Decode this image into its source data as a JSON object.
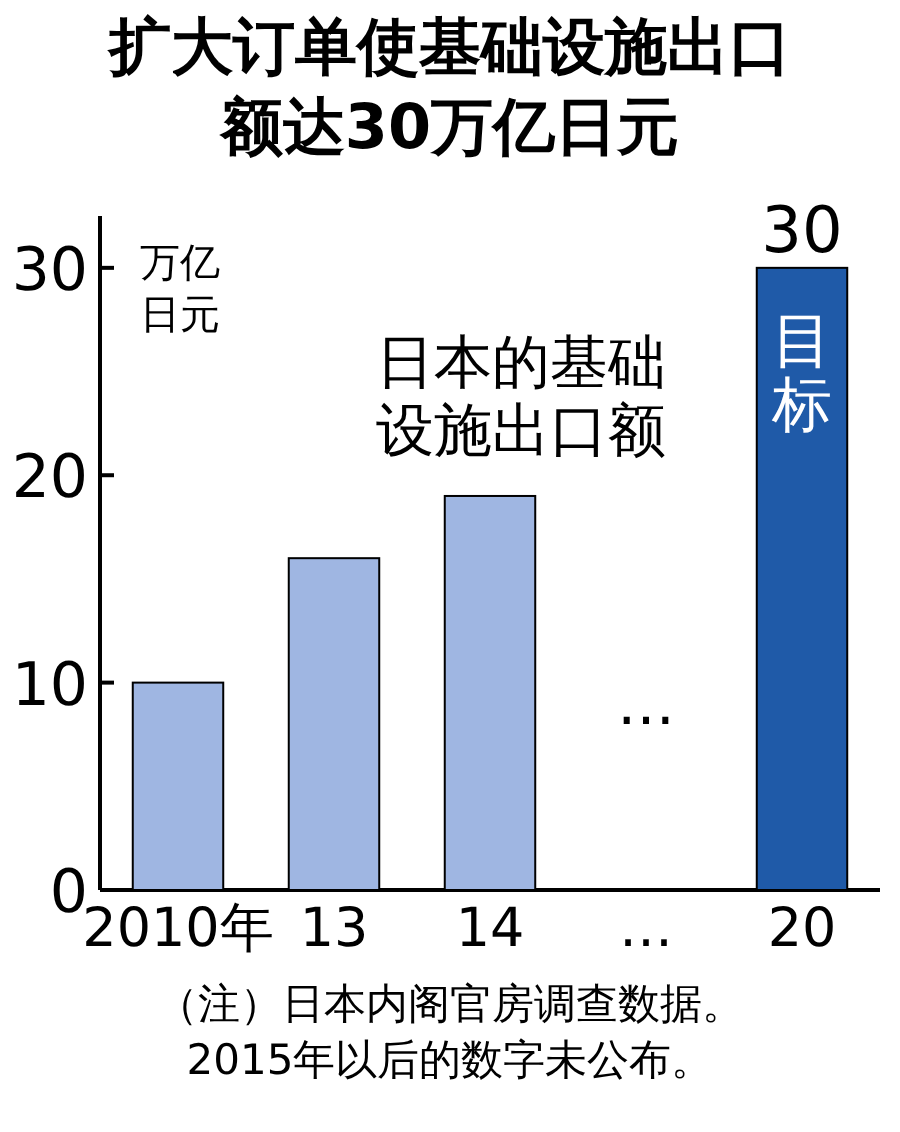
{
  "chart_data": {
    "type": "bar",
    "title": "扩大订单使基础设施出口额达30万亿日元",
    "ylabel": "万亿日元",
    "categories": [
      "2010年",
      "13",
      "14",
      "…",
      "20"
    ],
    "values": [
      10,
      16,
      19,
      null,
      30
    ],
    "colors": [
      "#9fb6e2",
      "#9fb6e2",
      "#9fb6e2",
      null,
      "#1f5aa8"
    ],
    "value_labels": [
      null,
      null,
      null,
      null,
      "30"
    ],
    "ylim": [
      0,
      32.5
    ],
    "yticks": [
      0,
      10,
      20,
      30
    ],
    "grid": false,
    "annotations": [
      "日本的基础设施出口额",
      "…",
      "目标",
      "（注）日本内阁官房调查数据。",
      "2015年以后的数字未公布。"
    ]
  }
}
